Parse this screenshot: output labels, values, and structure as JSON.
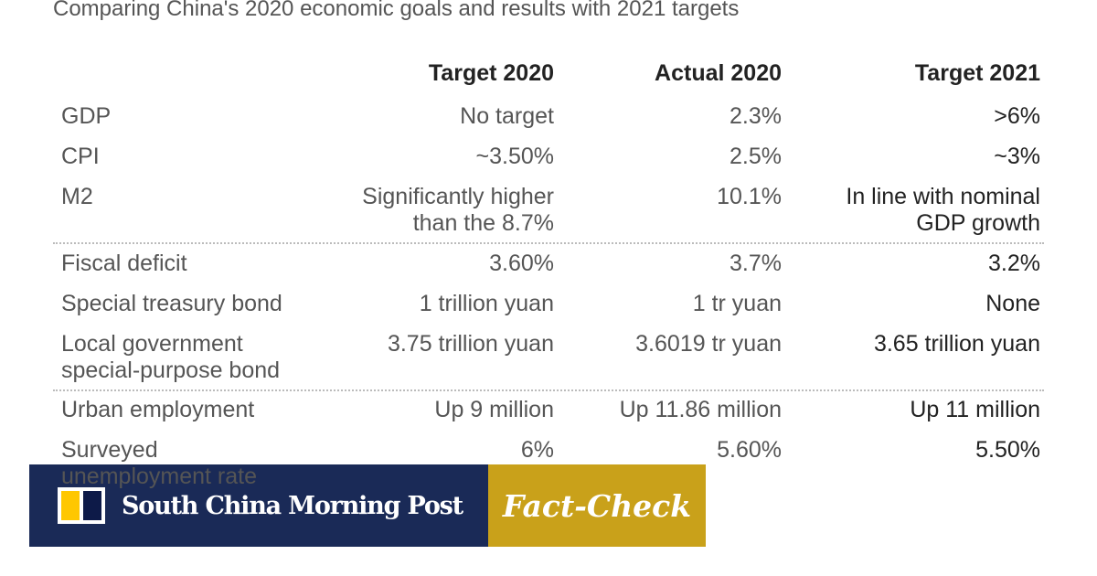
{
  "subtitle": "Comparing China's 2020 economic goals and results with 2021 targets",
  "chart_data": {
    "type": "table",
    "columns": [
      "",
      "Target 2020",
      "Actual 2020",
      "Target 2021"
    ],
    "rows": [
      {
        "label": "GDP",
        "target_2020": "No target",
        "actual_2020": "2.3%",
        "target_2021": ">6%"
      },
      {
        "label": "CPI",
        "target_2020": "~3.50%",
        "actual_2020": "2.5%",
        "target_2021": "~3%"
      },
      {
        "label": "M2",
        "target_2020": "Significantly higher than the 8.7%",
        "actual_2020": "10.1%",
        "target_2021": "In line with nominal GDP  growth"
      },
      {
        "label": "Fiscal deficit",
        "target_2020": "3.60%",
        "actual_2020": "3.7%",
        "target_2021": "3.2%"
      },
      {
        "label": "Special treasury bond",
        "target_2020": "1 trillion yuan",
        "actual_2020": "1 tr yuan",
        "target_2021": "None"
      },
      {
        "label": "Local government special-purpose bond",
        "target_2020": "3.75 trillion yuan",
        "actual_2020": "3.6019 tr yuan",
        "target_2021": "3.65 trillion yuan"
      },
      {
        "label": "Urban employment",
        "target_2020": "Up 9 million",
        "actual_2020": "Up 11.86 million",
        "target_2021": "Up 11 million"
      },
      {
        "label": "Surveyed unemployment rate",
        "target_2020": "6%",
        "actual_2020": "5.60%",
        "target_2021": "5.50%"
      }
    ]
  },
  "banner": {
    "brand": "South China Morning Post",
    "tag": "Fact-Check",
    "navy": "#1a2a57",
    "gold": "#c9a11a"
  }
}
